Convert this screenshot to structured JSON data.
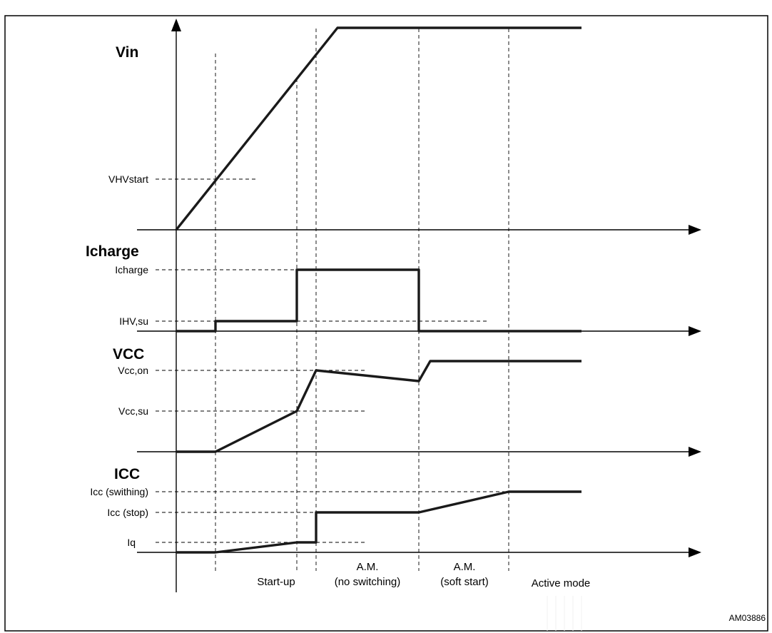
{
  "figure": {
    "reference": "AM03886"
  },
  "waveforms": [
    {
      "title": "Vin",
      "levels": [
        "VHVstart"
      ]
    },
    {
      "title": "Icharge",
      "levels": [
        "Icharge",
        "IHV,su"
      ]
    },
    {
      "title": "VCC",
      "levels": [
        "Vcc,on",
        "Vcc,su"
      ]
    },
    {
      "title": "ICC",
      "levels": [
        "Icc (swithing)",
        "Icc (stop)",
        "Iq"
      ]
    }
  ],
  "phases": [
    {
      "line1": "Start-up"
    },
    {
      "line1": "A.M.",
      "line2": "(no switching)"
    },
    {
      "line1": "A.M.",
      "line2": "(soft start)"
    },
    {
      "line1": "Active mode"
    }
  ]
}
